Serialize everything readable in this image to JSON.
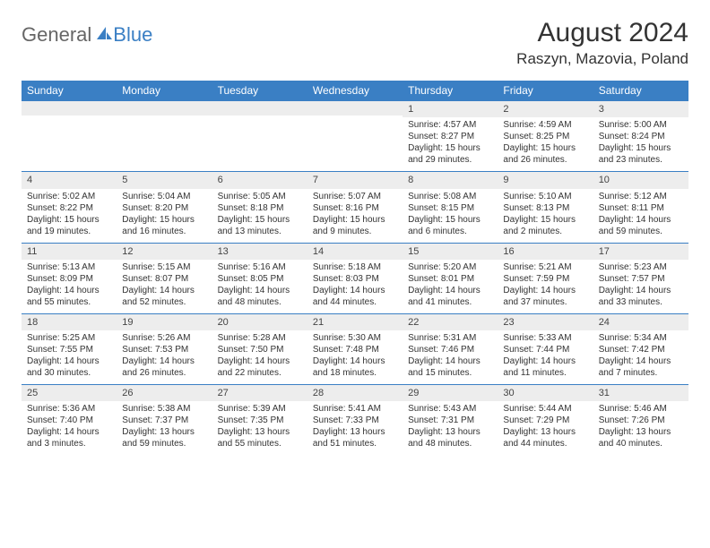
{
  "brand": {
    "first": "General",
    "second": "Blue"
  },
  "title": "August 2024",
  "location": "Raszyn, Mazovia, Poland",
  "colors": {
    "accent": "#3a7fc4",
    "row_bg": "#ededed",
    "text": "#333333",
    "white": "#ffffff"
  },
  "weekdays": [
    "Sunday",
    "Monday",
    "Tuesday",
    "Wednesday",
    "Thursday",
    "Friday",
    "Saturday"
  ],
  "weeks": [
    [
      null,
      null,
      null,
      null,
      {
        "n": "1",
        "sr": "4:57 AM",
        "ss": "8:27 PM",
        "dl": "15 hours and 29 minutes."
      },
      {
        "n": "2",
        "sr": "4:59 AM",
        "ss": "8:25 PM",
        "dl": "15 hours and 26 minutes."
      },
      {
        "n": "3",
        "sr": "5:00 AM",
        "ss": "8:24 PM",
        "dl": "15 hours and 23 minutes."
      }
    ],
    [
      {
        "n": "4",
        "sr": "5:02 AM",
        "ss": "8:22 PM",
        "dl": "15 hours and 19 minutes."
      },
      {
        "n": "5",
        "sr": "5:04 AM",
        "ss": "8:20 PM",
        "dl": "15 hours and 16 minutes."
      },
      {
        "n": "6",
        "sr": "5:05 AM",
        "ss": "8:18 PM",
        "dl": "15 hours and 13 minutes."
      },
      {
        "n": "7",
        "sr": "5:07 AM",
        "ss": "8:16 PM",
        "dl": "15 hours and 9 minutes."
      },
      {
        "n": "8",
        "sr": "5:08 AM",
        "ss": "8:15 PM",
        "dl": "15 hours and 6 minutes."
      },
      {
        "n": "9",
        "sr": "5:10 AM",
        "ss": "8:13 PM",
        "dl": "15 hours and 2 minutes."
      },
      {
        "n": "10",
        "sr": "5:12 AM",
        "ss": "8:11 PM",
        "dl": "14 hours and 59 minutes."
      }
    ],
    [
      {
        "n": "11",
        "sr": "5:13 AM",
        "ss": "8:09 PM",
        "dl": "14 hours and 55 minutes."
      },
      {
        "n": "12",
        "sr": "5:15 AM",
        "ss": "8:07 PM",
        "dl": "14 hours and 52 minutes."
      },
      {
        "n": "13",
        "sr": "5:16 AM",
        "ss": "8:05 PM",
        "dl": "14 hours and 48 minutes."
      },
      {
        "n": "14",
        "sr": "5:18 AM",
        "ss": "8:03 PM",
        "dl": "14 hours and 44 minutes."
      },
      {
        "n": "15",
        "sr": "5:20 AM",
        "ss": "8:01 PM",
        "dl": "14 hours and 41 minutes."
      },
      {
        "n": "16",
        "sr": "5:21 AM",
        "ss": "7:59 PM",
        "dl": "14 hours and 37 minutes."
      },
      {
        "n": "17",
        "sr": "5:23 AM",
        "ss": "7:57 PM",
        "dl": "14 hours and 33 minutes."
      }
    ],
    [
      {
        "n": "18",
        "sr": "5:25 AM",
        "ss": "7:55 PM",
        "dl": "14 hours and 30 minutes."
      },
      {
        "n": "19",
        "sr": "5:26 AM",
        "ss": "7:53 PM",
        "dl": "14 hours and 26 minutes."
      },
      {
        "n": "20",
        "sr": "5:28 AM",
        "ss": "7:50 PM",
        "dl": "14 hours and 22 minutes."
      },
      {
        "n": "21",
        "sr": "5:30 AM",
        "ss": "7:48 PM",
        "dl": "14 hours and 18 minutes."
      },
      {
        "n": "22",
        "sr": "5:31 AM",
        "ss": "7:46 PM",
        "dl": "14 hours and 15 minutes."
      },
      {
        "n": "23",
        "sr": "5:33 AM",
        "ss": "7:44 PM",
        "dl": "14 hours and 11 minutes."
      },
      {
        "n": "24",
        "sr": "5:34 AM",
        "ss": "7:42 PM",
        "dl": "14 hours and 7 minutes."
      }
    ],
    [
      {
        "n": "25",
        "sr": "5:36 AM",
        "ss": "7:40 PM",
        "dl": "14 hours and 3 minutes."
      },
      {
        "n": "26",
        "sr": "5:38 AM",
        "ss": "7:37 PM",
        "dl": "13 hours and 59 minutes."
      },
      {
        "n": "27",
        "sr": "5:39 AM",
        "ss": "7:35 PM",
        "dl": "13 hours and 55 minutes."
      },
      {
        "n": "28",
        "sr": "5:41 AM",
        "ss": "7:33 PM",
        "dl": "13 hours and 51 minutes."
      },
      {
        "n": "29",
        "sr": "5:43 AM",
        "ss": "7:31 PM",
        "dl": "13 hours and 48 minutes."
      },
      {
        "n": "30",
        "sr": "5:44 AM",
        "ss": "7:29 PM",
        "dl": "13 hours and 44 minutes."
      },
      {
        "n": "31",
        "sr": "5:46 AM",
        "ss": "7:26 PM",
        "dl": "13 hours and 40 minutes."
      }
    ]
  ],
  "labels": {
    "sunrise": "Sunrise:",
    "sunset": "Sunset:",
    "daylight": "Daylight:"
  }
}
